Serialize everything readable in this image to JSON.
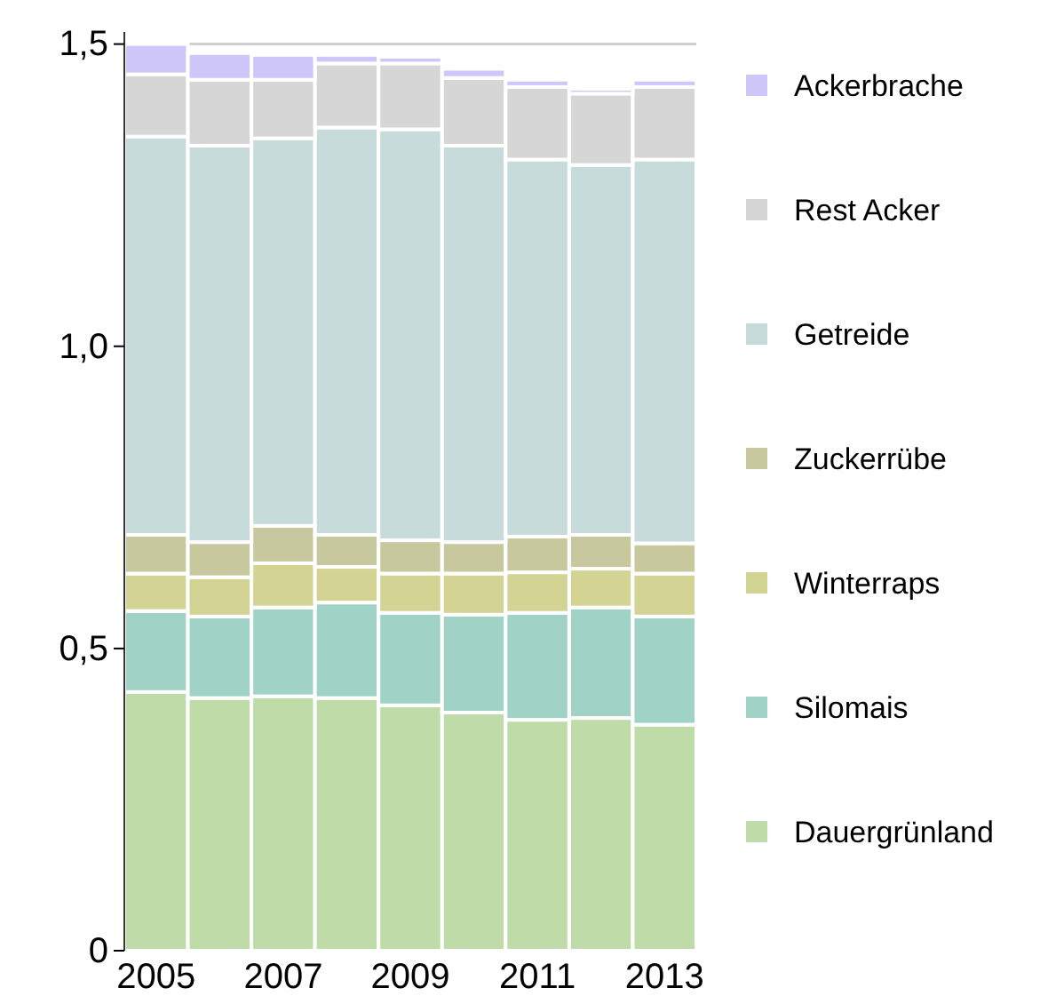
{
  "chart_data": {
    "type": "bar",
    "stacked": true,
    "categories": [
      "2005",
      null,
      "2007",
      null,
      "2009",
      null,
      "2011",
      null,
      "2013"
    ],
    "series": [
      {
        "name": "Dauergrünland",
        "color": "#bfdca8",
        "values": [
          0.428,
          0.418,
          0.421,
          0.418,
          0.406,
          0.394,
          0.382,
          0.385,
          0.374
        ]
      },
      {
        "name": "Silomais",
        "color": "#a0d2c6",
        "values": [
          0.134,
          0.135,
          0.147,
          0.158,
          0.153,
          0.162,
          0.177,
          0.183,
          0.179
        ]
      },
      {
        "name": "Winterraps",
        "color": "#d3d394",
        "values": [
          0.062,
          0.065,
          0.073,
          0.059,
          0.065,
          0.068,
          0.067,
          0.064,
          0.071
        ]
      },
      {
        "name": "Zuckerrübe",
        "color": "#c8c89e",
        "values": [
          0.064,
          0.058,
          0.062,
          0.053,
          0.055,
          0.052,
          0.059,
          0.056,
          0.05
        ]
      },
      {
        "name": "Getreide",
        "color": "#c7dbda",
        "values": [
          0.659,
          0.656,
          0.641,
          0.674,
          0.68,
          0.656,
          0.624,
          0.612,
          0.635
        ]
      },
      {
        "name": "Rest Acker",
        "color": "#d6d6d6",
        "values": [
          0.103,
          0.109,
          0.097,
          0.106,
          0.109,
          0.112,
          0.12,
          0.118,
          0.12
        ]
      },
      {
        "name": "Ackerbrache",
        "color": "#cfc7f9",
        "values": [
          0.05,
          0.044,
          0.041,
          0.014,
          0.011,
          0.015,
          0.012,
          0.008,
          0.012
        ]
      }
    ],
    "ylim": [
      0,
      1.52
    ],
    "yticks": [
      0,
      {
        "value": 0.5,
        "label": "0,5"
      },
      {
        "value": 1.0,
        "label": "1,0"
      },
      {
        "value": 1.5,
        "label": "1,5"
      }
    ],
    "grid": "y",
    "legend": "right"
  }
}
